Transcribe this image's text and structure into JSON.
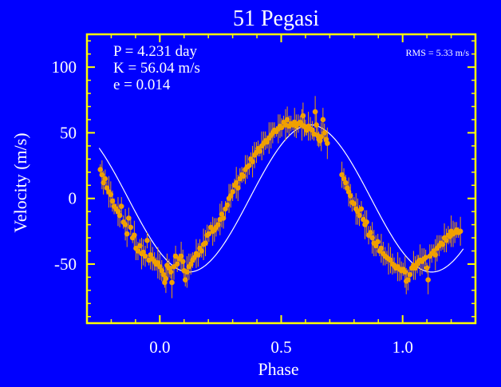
{
  "colors": {
    "background": "#0000ff",
    "axes": "#ffff00",
    "text": "#ffffff",
    "points": "#f0a000",
    "fit": "#ffffff"
  },
  "chart_data": {
    "type": "scatter",
    "title": "51 Pegasi",
    "xlabel": "Phase",
    "ylabel": "Velocity  (m/s)",
    "xlim": [
      -0.3,
      1.3
    ],
    "ylim": [
      -95,
      125
    ],
    "xticks": [
      0.0,
      0.5,
      1.0
    ],
    "xtick_labels": [
      "0.0",
      "0.5",
      "1.0"
    ],
    "yticks": [
      -50,
      0,
      50,
      100
    ],
    "ytick_labels": [
      "-50",
      "0",
      "50",
      "100"
    ],
    "annotations": [
      "P = 4.231 day",
      "K = 56.04 m/s",
      "e = 0.014"
    ],
    "rms_label": "RMS = 5.33 m/s",
    "fit": {
      "amplitude": 56.04,
      "phase_offset": 0.37,
      "x_range": [
        -0.25,
        1.25
      ]
    },
    "series": [
      {
        "points": [
          [
            -0.245,
            22
          ],
          [
            -0.238,
            18
          ],
          [
            -0.232,
            12
          ],
          [
            -0.225,
            15
          ],
          [
            -0.218,
            8
          ],
          [
            -0.21,
            5
          ],
          [
            -0.202,
            3
          ],
          [
            -0.195,
            -2
          ],
          [
            -0.188,
            -6
          ],
          [
            -0.18,
            -8
          ],
          [
            -0.172,
            -10
          ],
          [
            -0.165,
            -13
          ],
          [
            -0.158,
            -6
          ],
          [
            -0.15,
            -18
          ],
          [
            -0.142,
            -20
          ],
          [
            -0.135,
            -27
          ],
          [
            -0.128,
            -15
          ],
          [
            -0.12,
            -22
          ],
          [
            -0.112,
            -30
          ],
          [
            -0.105,
            -28
          ],
          [
            -0.098,
            -38
          ],
          [
            -0.09,
            -40
          ],
          [
            -0.082,
            -36
          ],
          [
            -0.075,
            -42
          ],
          [
            -0.068,
            -41
          ],
          [
            -0.06,
            -44
          ],
          [
            -0.052,
            -32
          ],
          [
            -0.045,
            -47
          ],
          [
            -0.038,
            -43
          ],
          [
            -0.03,
            -46
          ],
          [
            -0.022,
            -48
          ],
          [
            -0.015,
            -50
          ],
          [
            -0.008,
            -49
          ],
          [
            0.0,
            -52
          ],
          [
            0.008,
            -55
          ],
          [
            0.015,
            -58
          ],
          [
            0.02,
            -64
          ],
          [
            0.025,
            -61
          ],
          [
            0.03,
            -51
          ],
          [
            0.038,
            -53
          ],
          [
            0.045,
            -56
          ],
          [
            0.05,
            -64
          ],
          [
            0.058,
            -52
          ],
          [
            0.065,
            -44
          ],
          [
            0.072,
            -50
          ],
          [
            0.08,
            -46
          ],
          [
            0.088,
            -44
          ],
          [
            0.095,
            -48
          ],
          [
            0.1,
            -55
          ],
          [
            0.105,
            -62
          ],
          [
            0.112,
            -56
          ],
          [
            0.12,
            -52
          ],
          [
            0.128,
            -50
          ],
          [
            0.135,
            -47
          ],
          [
            0.142,
            -45
          ],
          [
            0.15,
            -42
          ],
          [
            0.158,
            -43
          ],
          [
            0.165,
            -38
          ],
          [
            0.172,
            -40
          ],
          [
            0.18,
            -35
          ],
          [
            0.188,
            -34
          ],
          [
            0.195,
            -28
          ],
          [
            0.202,
            -27
          ],
          [
            0.21,
            -22
          ],
          [
            0.218,
            -25
          ],
          [
            0.225,
            -24
          ],
          [
            0.232,
            -22
          ],
          [
            0.24,
            -20
          ],
          [
            0.248,
            -16
          ],
          [
            0.255,
            -12
          ],
          [
            0.262,
            -15
          ],
          [
            0.27,
            -8
          ],
          [
            0.278,
            -5
          ],
          [
            0.285,
            0
          ],
          [
            0.292,
            2
          ],
          [
            0.3,
            5
          ],
          [
            0.308,
            10
          ],
          [
            0.315,
            12
          ],
          [
            0.322,
            8
          ],
          [
            0.33,
            15
          ],
          [
            0.338,
            18
          ],
          [
            0.345,
            17
          ],
          [
            0.352,
            22
          ],
          [
            0.36,
            24
          ],
          [
            0.368,
            25
          ],
          [
            0.375,
            30
          ],
          [
            0.382,
            28
          ],
          [
            0.39,
            33
          ],
          [
            0.398,
            35
          ],
          [
            0.405,
            38
          ],
          [
            0.412,
            36
          ],
          [
            0.42,
            40
          ],
          [
            0.428,
            42
          ],
          [
            0.435,
            44
          ],
          [
            0.442,
            43
          ],
          [
            0.45,
            46
          ],
          [
            0.458,
            48
          ],
          [
            0.465,
            50
          ],
          [
            0.472,
            52
          ],
          [
            0.48,
            51
          ],
          [
            0.488,
            53
          ],
          [
            0.495,
            55
          ],
          [
            0.502,
            54
          ],
          [
            0.51,
            58
          ],
          [
            0.518,
            56
          ],
          [
            0.525,
            60
          ],
          [
            0.532,
            55
          ],
          [
            0.54,
            57
          ],
          [
            0.548,
            56
          ],
          [
            0.555,
            58
          ],
          [
            0.562,
            55
          ],
          [
            0.57,
            57
          ],
          [
            0.578,
            58
          ],
          [
            0.585,
            56
          ],
          [
            0.59,
            63
          ],
          [
            0.595,
            55
          ],
          [
            0.6,
            54
          ],
          [
            0.605,
            52
          ],
          [
            0.612,
            55
          ],
          [
            0.62,
            53
          ],
          [
            0.628,
            52
          ],
          [
            0.635,
            49
          ],
          [
            0.64,
            66
          ],
          [
            0.645,
            56
          ],
          [
            0.65,
            48
          ],
          [
            0.655,
            45
          ],
          [
            0.66,
            44
          ],
          [
            0.665,
            47
          ],
          [
            0.672,
            60
          ],
          [
            0.678,
            50
          ],
          [
            0.685,
            45
          ],
          [
            0.69,
            42
          ],
          [
            0.75,
            18
          ],
          [
            0.758,
            15
          ],
          [
            0.765,
            12
          ],
          [
            0.772,
            8
          ],
          [
            0.778,
            5
          ],
          [
            0.785,
            2
          ],
          [
            0.792,
            -3
          ],
          [
            0.8,
            -4
          ],
          [
            0.808,
            -8
          ],
          [
            0.815,
            -10
          ],
          [
            0.822,
            -13
          ],
          [
            0.83,
            -8
          ],
          [
            0.838,
            -16
          ],
          [
            0.845,
            -20
          ],
          [
            0.852,
            -18
          ],
          [
            0.86,
            -28
          ],
          [
            0.868,
            -26
          ],
          [
            0.875,
            -30
          ],
          [
            0.882,
            -34
          ],
          [
            0.89,
            -36
          ],
          [
            0.898,
            -33
          ],
          [
            0.905,
            -40
          ],
          [
            0.912,
            -38
          ],
          [
            0.92,
            -42
          ],
          [
            0.928,
            -44
          ],
          [
            0.935,
            -45
          ],
          [
            0.942,
            -46
          ],
          [
            0.95,
            -47
          ],
          [
            0.958,
            -50
          ],
          [
            0.965,
            -51
          ],
          [
            0.972,
            -53
          ],
          [
            0.98,
            -52
          ],
          [
            0.988,
            -54
          ],
          [
            0.995,
            -55
          ],
          [
            1.002,
            -54
          ],
          [
            1.01,
            -56
          ],
          [
            1.015,
            -63
          ],
          [
            1.022,
            -62
          ],
          [
            1.03,
            -58
          ],
          [
            1.038,
            -53
          ],
          [
            1.045,
            -51
          ],
          [
            1.052,
            -53
          ],
          [
            1.06,
            -50
          ],
          [
            1.065,
            -48
          ],
          [
            1.072,
            -47
          ],
          [
            1.08,
            -48
          ],
          [
            1.088,
            -46
          ],
          [
            1.095,
            -45
          ],
          [
            1.1,
            -53
          ],
          [
            1.105,
            -62
          ],
          [
            1.112,
            -44
          ],
          [
            1.12,
            -42
          ],
          [
            1.128,
            -40
          ],
          [
            1.135,
            -43
          ],
          [
            1.142,
            -38
          ],
          [
            1.15,
            -36
          ],
          [
            1.158,
            -34
          ],
          [
            1.165,
            -35
          ],
          [
            1.172,
            -30
          ],
          [
            1.18,
            -32
          ],
          [
            1.188,
            -28
          ],
          [
            1.195,
            -29
          ],
          [
            1.2,
            -25
          ],
          [
            1.208,
            -27
          ],
          [
            1.215,
            -26
          ],
          [
            1.222,
            -24
          ],
          [
            1.23,
            -26
          ],
          [
            1.238,
            -25
          ]
        ]
      }
    ]
  }
}
